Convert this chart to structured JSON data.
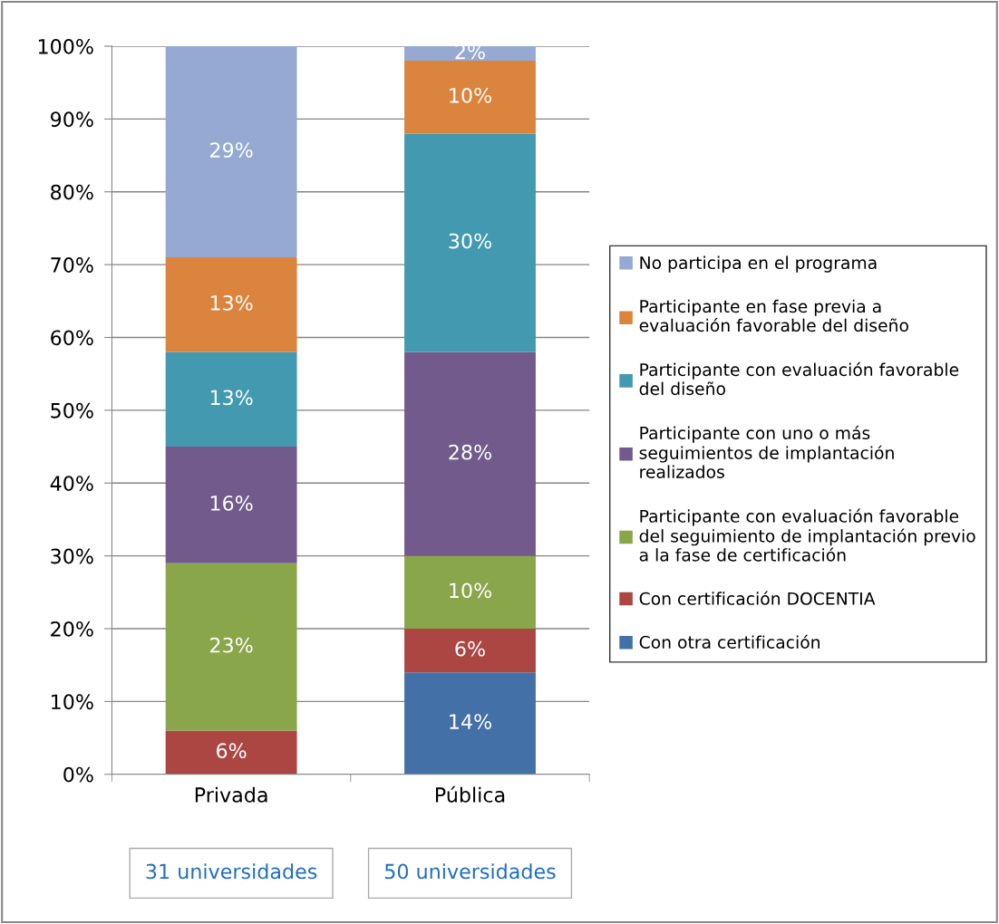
{
  "chart_data": {
    "type": "bar",
    "stacked": true,
    "categories": [
      "Privada",
      "Pública"
    ],
    "series": [
      {
        "name": "Con otra certificación",
        "color": "#4470a8",
        "values": [
          0,
          14
        ],
        "value_labels": [
          null,
          "14%"
        ]
      },
      {
        "name": "Con certificación DOCENTIA",
        "color": "#ab4643",
        "values": [
          6,
          6
        ],
        "value_labels": [
          "6%",
          "6%"
        ]
      },
      {
        "name": "Participante con evaluación favorable del seguimiento de implantación previo a la fase de certificación",
        "color": "#8aa64b",
        "values": [
          23,
          10
        ],
        "value_labels": [
          "23%",
          "10%"
        ]
      },
      {
        "name": "Participante con uno o más seguimientos de implantación realizados",
        "color": "#725a8c",
        "values": [
          16,
          28
        ],
        "value_labels": [
          "16%",
          "28%"
        ]
      },
      {
        "name": "Participante con evaluación favorable del diseño",
        "color": "#4399b0",
        "values": [
          13,
          30
        ],
        "value_labels": [
          "13%",
          "30%"
        ]
      },
      {
        "name": "Participante en fase previa a evaluación favorable del diseño",
        "color": "#db843d",
        "values": [
          13,
          10
        ],
        "value_labels": [
          "13%",
          "10%"
        ]
      },
      {
        "name": "No participa en el programa",
        "color": "#95a9d2",
        "values": [
          29,
          2
        ],
        "value_labels": [
          "29%",
          "2%"
        ]
      }
    ],
    "ylim": [
      0,
      100
    ],
    "yticks": [
      {
        "value": 0,
        "label": "0%"
      },
      {
        "value": 10,
        "label": "10%"
      },
      {
        "value": 20,
        "label": "20%"
      },
      {
        "value": 30,
        "label": "30%"
      },
      {
        "value": 40,
        "label": "40%"
      },
      {
        "value": 50,
        "label": "50%"
      },
      {
        "value": 60,
        "label": "60%"
      },
      {
        "value": 70,
        "label": "70%"
      },
      {
        "value": 80,
        "label": "80%"
      },
      {
        "value": 90,
        "label": "90%"
      },
      {
        "value": 100,
        "label": "100%"
      }
    ],
    "grid": "y",
    "legend": "right",
    "annotations": [
      "31 universidades",
      "50 universidades"
    ]
  }
}
